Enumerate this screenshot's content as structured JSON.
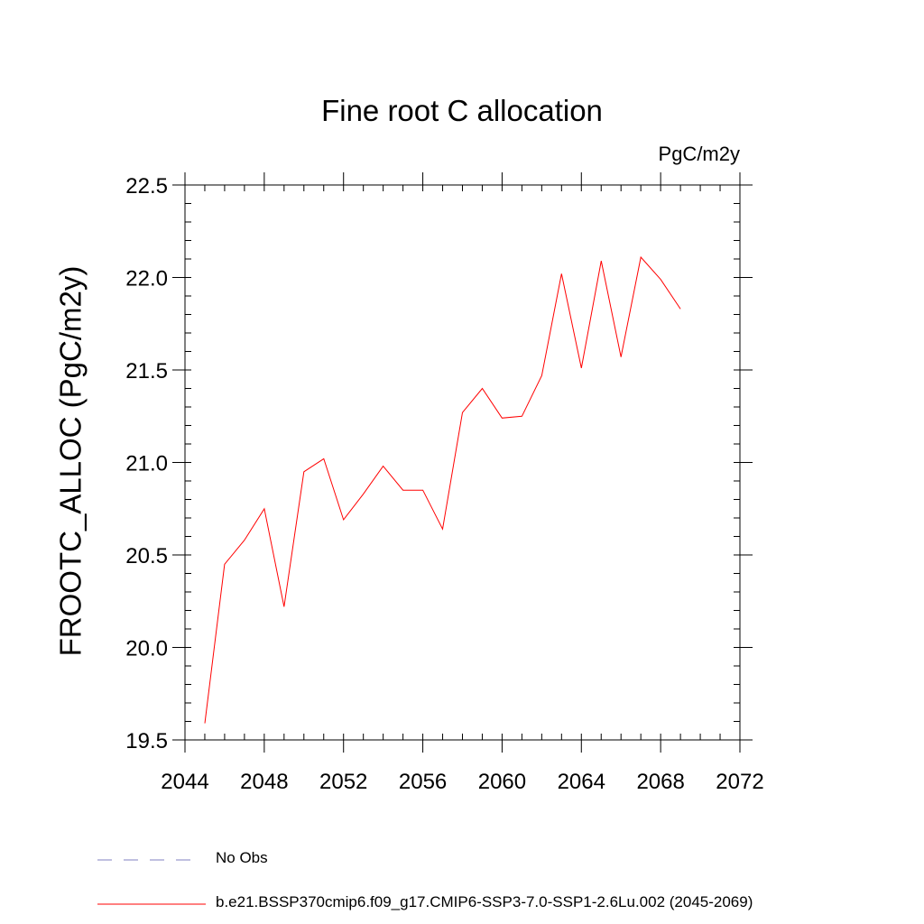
{
  "chart_data": {
    "type": "line",
    "title": "Fine root C allocation",
    "units": "PgC/m2y",
    "ylabel": "FROOTC_ALLOC  (PgC/m2y)",
    "xlabel": "",
    "xlim": [
      2044,
      2072
    ],
    "ylim": [
      19.5,
      22.5
    ],
    "x_ticks": [
      "2044",
      "2048",
      "2052",
      "2056",
      "2060",
      "2064",
      "2068",
      "2072"
    ],
    "y_ticks": [
      "19.5",
      "20.0",
      "20.5",
      "21.0",
      "21.5",
      "22.0",
      "22.5"
    ],
    "series": [
      {
        "name": "b.e21.BSSP370cmip6.f09_g17.CMIP6-SSP3-7.0-SSP1-2.6Lu.002 (2045-2069)",
        "color": "#ff0000",
        "x": [
          2045,
          2046,
          2047,
          2048,
          2049,
          2050,
          2051,
          2052,
          2053,
          2054,
          2055,
          2056,
          2057,
          2058,
          2059,
          2060,
          2061,
          2062,
          2063,
          2064,
          2065,
          2066,
          2067,
          2068,
          2069
        ],
        "y": [
          19.59,
          20.45,
          20.58,
          20.75,
          20.22,
          20.95,
          21.02,
          20.69,
          20.83,
          20.98,
          20.85,
          20.85,
          20.64,
          21.27,
          21.4,
          21.24,
          21.25,
          21.47,
          22.02,
          21.51,
          22.09,
          21.57,
          22.11,
          21.99,
          21.83
        ]
      }
    ],
    "legend": [
      {
        "label": "No Obs",
        "style": "dashed",
        "color": "#8080c0"
      },
      {
        "label": "b.e21.BSSP370cmip6.f09_g17.CMIP6-SSP3-7.0-SSP1-2.6Lu.002 (2045-2069)",
        "style": "solid",
        "color": "#ff0000"
      }
    ],
    "legend_position": "bottom-left",
    "grid": false
  }
}
